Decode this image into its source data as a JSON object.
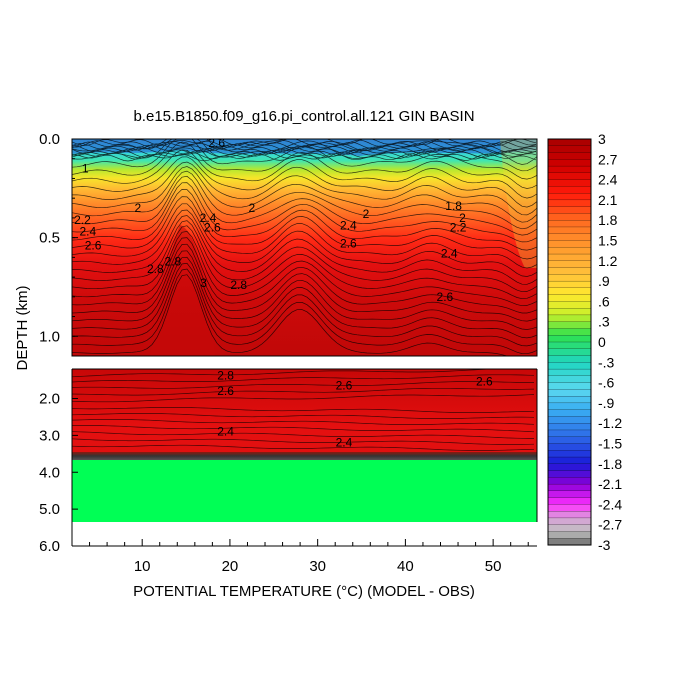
{
  "chart_data": {
    "type": "heatmap",
    "title": "b.e15.B1850.f09_g16.pi_control.all.121 GIN BASIN",
    "xlabel": "POTENTIAL TEMPERATURE (°C) (MODEL - OBS)",
    "ylabel": "DEPTH (km)",
    "xlim": [
      2,
      55
    ],
    "x_ticks": [
      "10",
      "20",
      "30",
      "40",
      "50"
    ],
    "upper_panel": {
      "ylim": [
        0.0,
        1.1
      ],
      "y_ticks": [
        "0.0",
        "0.5",
        "1.0"
      ]
    },
    "lower_panel": {
      "ylim": [
        1.2,
        6.0
      ],
      "y_ticks": [
        "2.0",
        "3.0",
        "4.0",
        "5.0",
        "6.0"
      ]
    },
    "colorbar": {
      "ticks": [
        "3",
        "2.7",
        "2.4",
        "2.1",
        "1.8",
        "1.5",
        "1.2",
        ".9",
        ".6",
        ".3",
        "0",
        "-.3",
        "-.6",
        "-.9",
        "-1.2",
        "-1.5",
        "-1.8",
        "-2.1",
        "-2.4",
        "-2.7",
        "-3"
      ],
      "min": -3,
      "max": 3
    },
    "contour_labels_upper": [
      {
        "text": "2.6",
        "x": 18.5,
        "y": 0.04
      },
      {
        "text": "1",
        "x": 3.5,
        "y": 0.17
      },
      {
        "text": "2",
        "x": 9.5,
        "y": 0.37
      },
      {
        "text": "2.2",
        "x": 3.2,
        "y": 0.43
      },
      {
        "text": "2.4",
        "x": 3.8,
        "y": 0.49
      },
      {
        "text": "2.6",
        "x": 4.4,
        "y": 0.56
      },
      {
        "text": "2.8",
        "x": 11.5,
        "y": 0.68
      },
      {
        "text": "2.8",
        "x": 13.5,
        "y": 0.64
      },
      {
        "text": "3",
        "x": 17,
        "y": 0.75
      },
      {
        "text": "2.8",
        "x": 21,
        "y": 0.76
      },
      {
        "text": "2",
        "x": 22.5,
        "y": 0.37
      },
      {
        "text": "2",
        "x": 35.5,
        "y": 0.4
      },
      {
        "text": "2.4",
        "x": 33.5,
        "y": 0.46
      },
      {
        "text": "2.6",
        "x": 33.5,
        "y": 0.55
      },
      {
        "text": "2.4",
        "x": 17.5,
        "y": 0.42
      },
      {
        "text": "2.6",
        "x": 18,
        "y": 0.47
      },
      {
        "text": "1.8",
        "x": 45.5,
        "y": 0.36
      },
      {
        "text": "2",
        "x": 46.5,
        "y": 0.42
      },
      {
        "text": "2.2",
        "x": 46,
        "y": 0.47
      },
      {
        "text": "2.4",
        "x": 45,
        "y": 0.6
      },
      {
        "text": "2.6",
        "x": 44.5,
        "y": 0.82
      }
    ],
    "contour_labels_lower": [
      {
        "text": "2.8",
        "x": 19.5,
        "y": 1.48
      },
      {
        "text": "2.6",
        "x": 19.5,
        "y": 1.9
      },
      {
        "text": "2.6",
        "x": 33,
        "y": 1.75
      },
      {
        "text": "2.6",
        "x": 49,
        "y": 1.65
      },
      {
        "text": "2.4",
        "x": 19.5,
        "y": 3.0
      },
      {
        "text": "2.4",
        "x": 33,
        "y": 3.3
      }
    ]
  }
}
